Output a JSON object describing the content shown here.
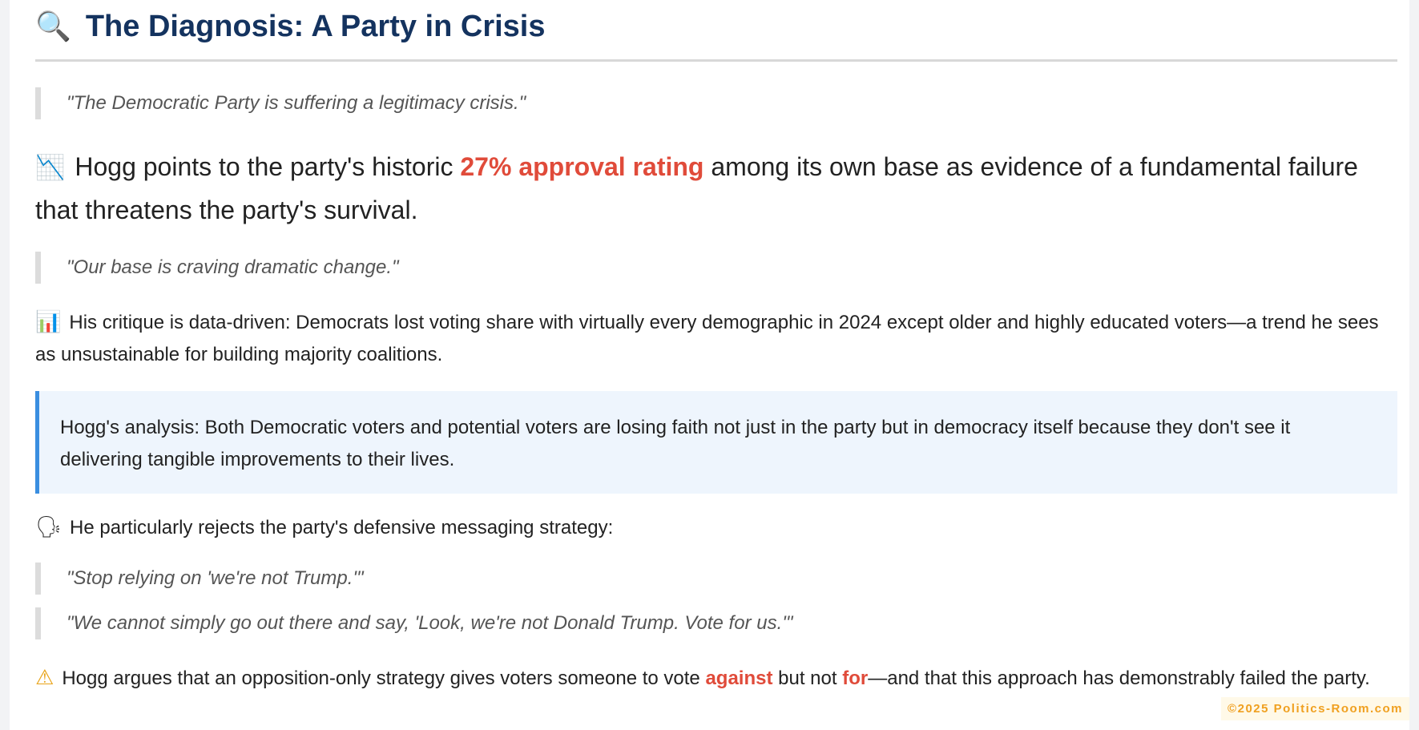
{
  "heading": {
    "icon": "magnifying-glass-icon",
    "emoji": "🔍",
    "title": "The Diagnosis: A Party in Crisis"
  },
  "quote1": "\"The Democratic Party is suffering a legitimacy crisis.\"",
  "approval": {
    "icon": "chart-decreasing-icon",
    "emoji": "📉",
    "before": "Hogg points to the party's historic ",
    "highlight": "27% approval rating",
    "after": " among its own base as evidence of a fundamental failure that threatens the party's survival."
  },
  "quote2": "\"Our base is craving dramatic change.\"",
  "critique": {
    "icon": "bar-chart-icon",
    "emoji": "📊",
    "text": "His critique is data-driven: Democrats lost voting share with virtually every demographic in 2024 except older and highly educated voters—a trend he sees as unsustainable for building majority coalitions."
  },
  "callout": "Hogg's analysis: Both Democratic voters and potential voters are losing faith not just in the party but in democracy itself because they don't see it delivering tangible improvements to their lives.",
  "messaging": {
    "icon": "speaking-head-icon",
    "emoji": "🗣",
    "text": "He particularly rejects the party's defensive messaging strategy:"
  },
  "quote3": "\"Stop relying on 'we're not Trump.'\"",
  "quote4": "\"We cannot simply go out there and say, 'Look, we're not Donald Trump. Vote for us.'\"",
  "conclusion": {
    "icon": "warning-icon",
    "emoji": "⚠",
    "before": "Hogg argues that an opposition-only strategy gives voters someone to vote ",
    "hl1": "against",
    "middle": " but not ",
    "hl2": "for",
    "after": "—and that this approach has demonstrably failed the party."
  },
  "footer": "©2025 Politics-Room.com",
  "colors": {
    "heading": "#14335f",
    "highlight": "#e04b3a",
    "callout_border": "#3a8ee0",
    "callout_bg": "#eef5fd",
    "footer": "#f0a020"
  }
}
